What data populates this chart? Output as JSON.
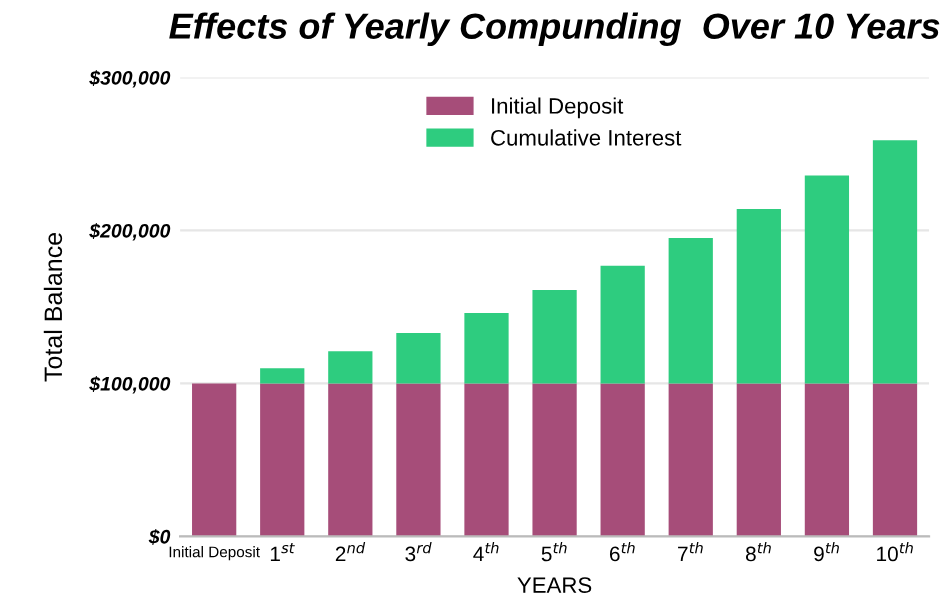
{
  "chart_data": {
    "type": "bar",
    "stacked": true,
    "title": "Effects of Yearly Compunding  Over 10 Years",
    "xlabel": "YEARS",
    "ylabel": "Total Balance",
    "categories": [
      "Initial Deposit",
      "1$^{st}$",
      "2$^{nd}$",
      "3$^{rd}$",
      "4$^{th}$",
      "5$^{th}$",
      "6$^{th}$",
      "7$^{th}$",
      "8$^{th}$",
      "9$^{th}$",
      "10$^{th}$"
    ],
    "series": [
      {
        "name": "Initial Deposit",
        "color": "#a64d79",
        "values": [
          100000,
          100000,
          100000,
          100000,
          100000,
          100000,
          100000,
          100000,
          100000,
          100000,
          100000
        ]
      },
      {
        "name": "Cumulative Interest",
        "color": "#2ecc7f",
        "values": [
          null,
          10000,
          21000,
          33000,
          46000,
          61000,
          77000,
          95000,
          114000,
          136000,
          159000
        ]
      }
    ],
    "ylim": [
      0,
      300000
    ],
    "yticks": [
      {
        "value": 0,
        "label": "$0"
      },
      {
        "value": 100000,
        "label": "$100,000"
      },
      {
        "value": 200000,
        "label": "$200,000"
      },
      {
        "value": 300000,
        "label": "$300,000"
      }
    ],
    "grid": "y",
    "legend": "top"
  }
}
